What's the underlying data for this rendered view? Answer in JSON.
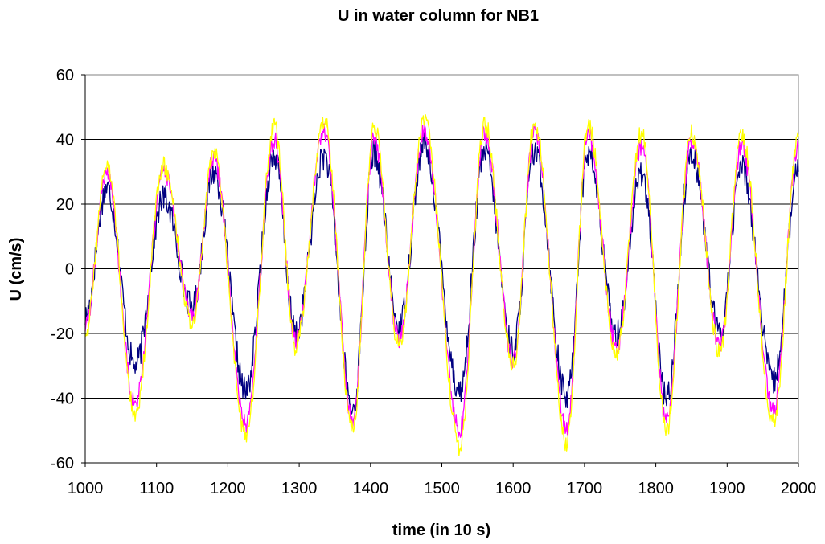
{
  "chart_data": {
    "type": "line",
    "title": "U in water column for NB1",
    "xlabel": "time (in 10 s)",
    "ylabel": "U (cm/s)",
    "xlim": [
      1000,
      2000
    ],
    "ylim": [
      -60,
      60
    ],
    "x_ticks": [
      "1000",
      "1100",
      "1200",
      "1300",
      "1400",
      "1500",
      "1600",
      "1700",
      "1800",
      "1900",
      "2000"
    ],
    "y_ticks": [
      "60",
      "40",
      "20",
      "0",
      "-20",
      "-40",
      "-60"
    ],
    "grid": "horizontal",
    "legend": "none",
    "series": [
      {
        "color": "#000080",
        "x": [
          1000,
          1030,
          1070,
          1110,
          1150,
          1180,
          1225,
          1265,
          1295,
          1335,
          1375,
          1405,
          1440,
          1475,
          1525,
          1560,
          1600,
          1630,
          1675,
          1705,
          1745,
          1780,
          1815,
          1850,
          1890,
          1920,
          1965,
          2000
        ],
        "values": [
          -15,
          25,
          -30,
          22,
          -12,
          30,
          -38,
          35,
          -20,
          35,
          -44,
          36,
          -18,
          38,
          -38,
          36,
          -25,
          36,
          -40,
          36,
          -20,
          30,
          -40,
          36,
          -20,
          32,
          -35,
          30
        ]
      },
      {
        "color": "#FF00FF",
        "x": [
          1000,
          1030,
          1070,
          1110,
          1150,
          1180,
          1225,
          1265,
          1295,
          1335,
          1375,
          1405,
          1440,
          1475,
          1525,
          1560,
          1600,
          1630,
          1675,
          1705,
          1745,
          1780,
          1815,
          1850,
          1890,
          1920,
          1965,
          2000
        ],
        "values": [
          -18,
          30,
          -42,
          30,
          -15,
          34,
          -48,
          40,
          -22,
          42,
          -47,
          40,
          -22,
          42,
          -50,
          42,
          -28,
          42,
          -50,
          42,
          -24,
          38,
          -47,
          40,
          -24,
          38,
          -44,
          38
        ]
      },
      {
        "color": "#FFFF00",
        "x": [
          1000,
          1030,
          1070,
          1110,
          1150,
          1180,
          1225,
          1265,
          1295,
          1335,
          1375,
          1405,
          1440,
          1475,
          1525,
          1560,
          1600,
          1630,
          1675,
          1705,
          1745,
          1780,
          1815,
          1850,
          1890,
          1920,
          1965,
          2000
        ],
        "values": [
          -20,
          32,
          -45,
          32,
          -17,
          36,
          -52,
          44,
          -24,
          46,
          -50,
          44,
          -24,
          46,
          -55,
          45,
          -30,
          45,
          -54,
          45,
          -26,
          42,
          -50,
          42,
          -26,
          42,
          -48,
          41
        ]
      }
    ]
  }
}
